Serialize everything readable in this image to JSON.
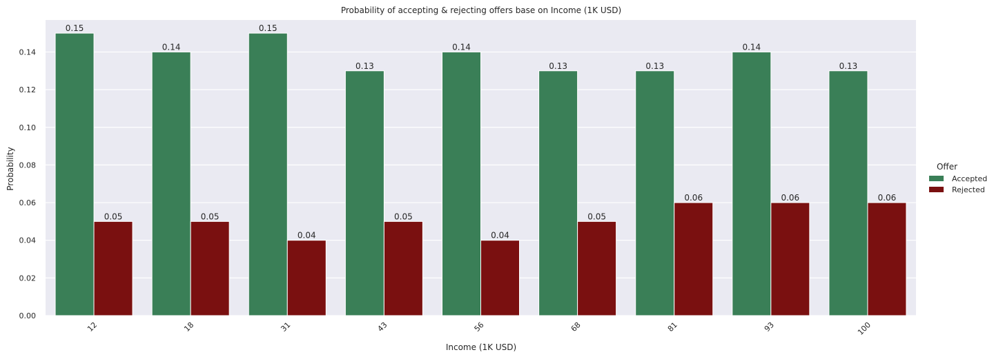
{
  "chart_data": {
    "type": "bar",
    "title": "Probability of accepting & rejecting offers base on Income (1K USD)",
    "xlabel": "Income (1K USD)",
    "ylabel": "Probability",
    "categories": [
      "12",
      "18",
      "31",
      "43",
      "56",
      "68",
      "81",
      "93",
      "100"
    ],
    "series": [
      {
        "name": "Accepted",
        "color": "#3a7f57",
        "values": [
          0.15,
          0.14,
          0.15,
          0.13,
          0.14,
          0.13,
          0.13,
          0.14,
          0.13
        ]
      },
      {
        "name": "Rejected",
        "color": "#7a1010",
        "values": [
          0.05,
          0.05,
          0.04,
          0.05,
          0.04,
          0.05,
          0.06,
          0.06,
          0.06
        ]
      }
    ],
    "data_labels": [
      [
        "0.15",
        "0.14",
        "0.15",
        "0.13",
        "0.14",
        "0.13",
        "0.13",
        "0.14",
        "0.13"
      ],
      [
        "0.05",
        "0.05",
        "0.04",
        "0.05",
        "0.04",
        "0.05",
        "0.06",
        "0.06",
        "0.06"
      ]
    ],
    "ylim": [
      0,
      0.157
    ],
    "yticks": [
      "0.00",
      "0.02",
      "0.04",
      "0.06",
      "0.08",
      "0.10",
      "0.12",
      "0.14"
    ],
    "legend": {
      "title": "Offer",
      "placement": "right"
    },
    "grid": true,
    "background_color": "#eaeaf2",
    "grid_color": "#ffffff"
  }
}
